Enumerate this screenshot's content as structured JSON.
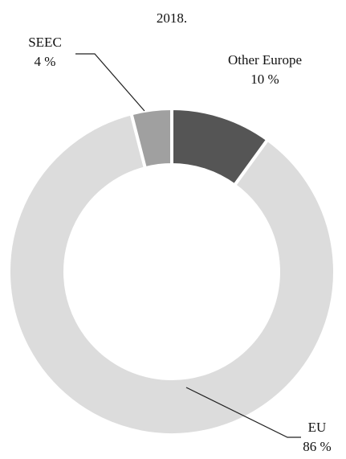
{
  "chart_data": {
    "type": "pie",
    "style": "donut",
    "title": "2018.",
    "slices": [
      {
        "label": "Other Europe",
        "value_label": "10 %",
        "value": 10,
        "color": "#555555"
      },
      {
        "label": "EU",
        "value_label": "86 %",
        "value": 86,
        "color": "#dcdcdc"
      },
      {
        "label": "SEEC",
        "value_label": "4 %",
        "value": 4,
        "color": "#a0a0a0"
      }
    ]
  }
}
